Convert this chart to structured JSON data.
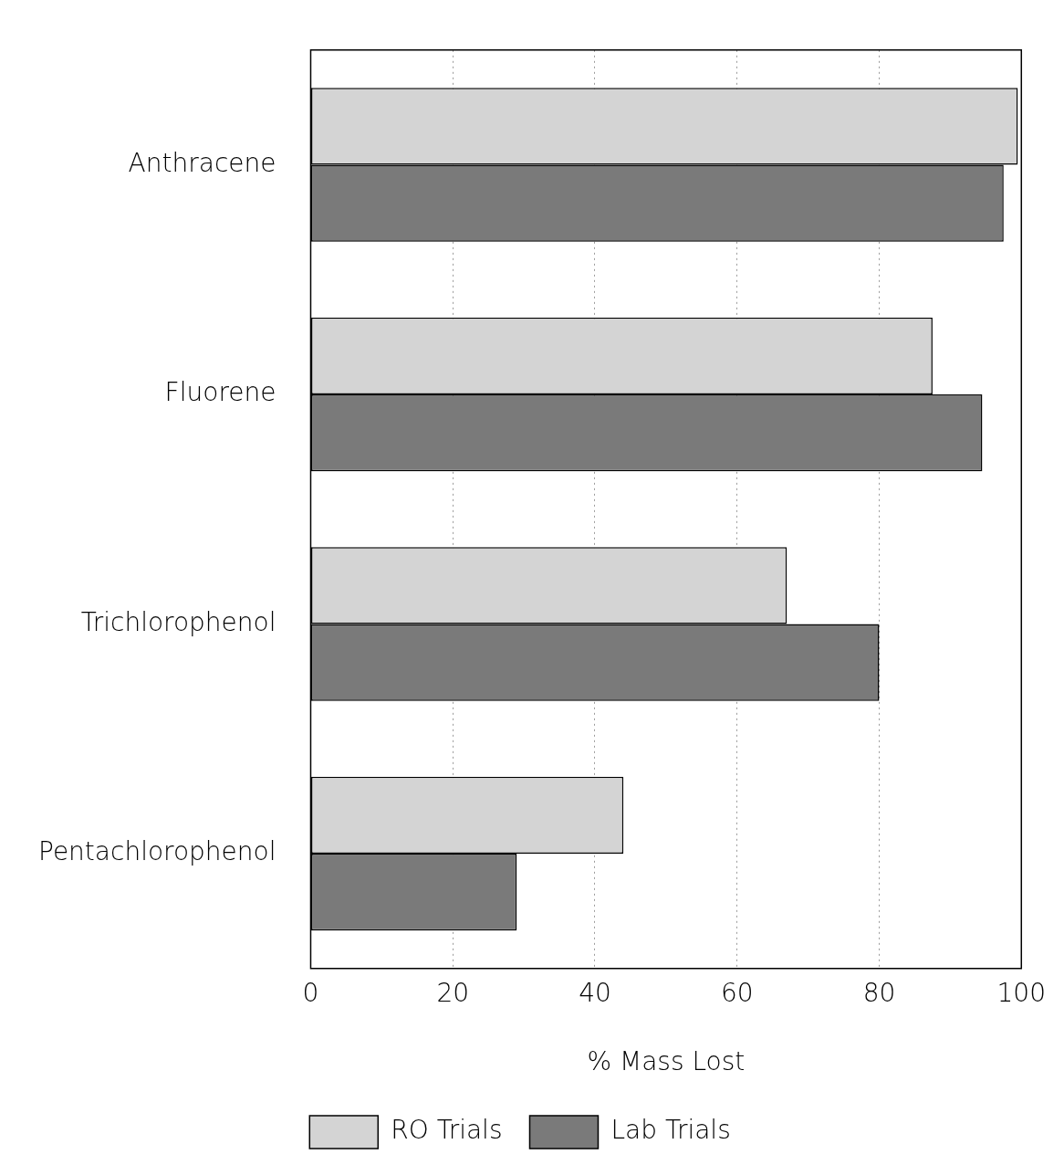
{
  "chart_data": {
    "type": "bar",
    "orientation": "horizontal",
    "xlabel": "% Mass Lost",
    "categories": [
      "Anthracene",
      "Fluorene",
      "Trichlorophenol",
      "Pentachlorophenol"
    ],
    "series": [
      {
        "name": "RO Trials",
        "color": "#d4d4d4",
        "values": [
          99.5,
          87.5,
          67,
          44
        ]
      },
      {
        "name": "Lab Trials",
        "color": "#7a7a7a",
        "values": [
          97.5,
          94.5,
          80,
          29
        ]
      }
    ],
    "xlim": [
      0,
      100
    ],
    "xticks": [
      0,
      20,
      40,
      60,
      80,
      100
    ],
    "grid": "x",
    "legend": "bottom"
  }
}
